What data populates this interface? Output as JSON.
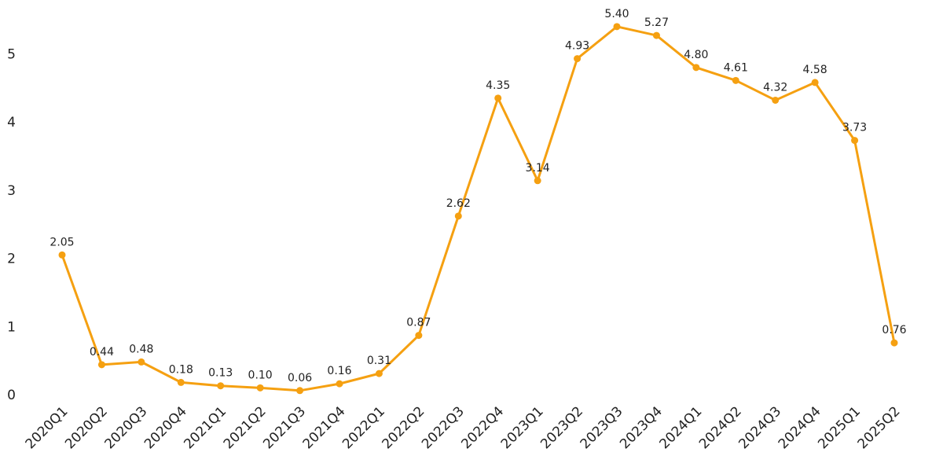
{
  "chart_data": {
    "type": "line",
    "title": "",
    "xlabel": "",
    "ylabel": "",
    "categories": [
      "2020Q1",
      "2020Q2",
      "2020Q3",
      "2020Q4",
      "2021Q1",
      "2021Q2",
      "2021Q3",
      "2021Q4",
      "2022Q1",
      "2022Q2",
      "2022Q3",
      "2022Q4",
      "2023Q1",
      "2023Q2",
      "2023Q3",
      "2023Q4",
      "2024Q1",
      "2024Q2",
      "2024Q3",
      "2024Q4",
      "2025Q1",
      "2025Q2"
    ],
    "series": [
      {
        "values": [
          2.05,
          0.44,
          0.48,
          0.18,
          0.13,
          0.1,
          0.06,
          0.16,
          0.31,
          0.87,
          2.62,
          4.35,
          3.14,
          4.93,
          5.4,
          5.27,
          4.8,
          4.61,
          4.32,
          4.58,
          3.73,
          0.76
        ],
        "labels": [
          "2.05",
          "0.44",
          "0.48",
          "0.18",
          "0.13",
          "0.10",
          "0.06",
          "0.16",
          "0.31",
          "0.87",
          "2.62",
          "4.35",
          "3.14",
          "4.93",
          "5.40",
          "5.27",
          "4.80",
          "4.61",
          "4.32",
          "4.58",
          "3.73",
          "0.76"
        ],
        "color": "#f5a011"
      }
    ],
    "yticks": [
      "0",
      "1",
      "2",
      "3",
      "4",
      "5"
    ],
    "ylim": [
      0,
      5.5
    ],
    "grid": false,
    "legend": "none"
  }
}
